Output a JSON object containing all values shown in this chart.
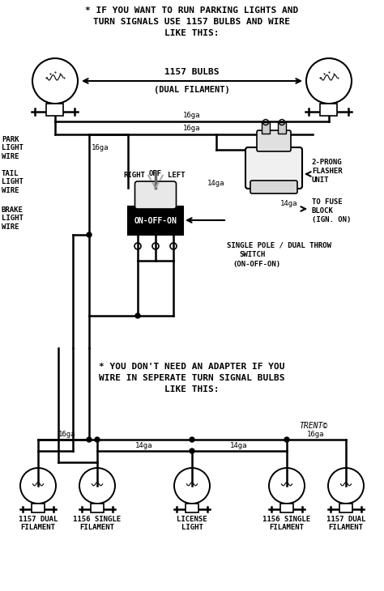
{
  "bg_color": "#ffffff",
  "line_color": "#000000",
  "top_text_line1": "* IF YOU WANT TO RUN PARKING LIGHTS AND",
  "top_text_line2": "TURN SIGNALS USE 1157 BULBS AND WIRE",
  "top_text_line3": "LIKE THIS:",
  "bulb_label1": "1157 BULBS",
  "bulb_label2": "(DUAL FILAMENT)",
  "left_label1": "PARK\nLIGHT\nWIRE",
  "left_label2": "TAIL\nLIGHT\nWIRE",
  "left_label3": "BRAKE\nLIGHT\nWIRE",
  "lbl_16ga_a": "16ga",
  "lbl_16ga_b": "16ga",
  "lbl_16ga_c": "16ga",
  "lbl_16ga_d": "16ga",
  "lbl_14ga_a": "14ga",
  "lbl_14ga_b": "14ga",
  "lbl_14ga_c": "14ga",
  "lbl_14ga_d": "14ga",
  "switch_text": "ON-OFF-ON",
  "right_lbl": "RIGHT",
  "off_lbl": "OFF",
  "left_lbl": "LEFT",
  "flasher_lbl1": "2-PRONG",
  "flasher_lbl2": "FLASHER",
  "flasher_lbl3": "UNIT",
  "fuse_lbl1": "TO FUSE",
  "fuse_lbl2": "BLOCK",
  "fuse_lbl3": "(IGN. ON)",
  "spdt_lbl1": "SINGLE POLE / DUAL THROW",
  "spdt_lbl2": "SWITCH",
  "spdt_lbl3": "(ON-OFF-ON)",
  "middle_line1": "* YOU DON'T NEED AN ADAPTER IF YOU",
  "middle_line2": "WIRE IN SEPERATE TURN SIGNAL BULBS",
  "middle_line3": "LIKE THIS:",
  "copyright": "TRENT©",
  "bottom_lbl0": "1157 DUAL\nFILAMENT",
  "bottom_lbl1": "1156 SINGLE\nFILAMENT",
  "bottom_lbl2": "LICENSE\nLIGHT",
  "bottom_lbl3": "1156 SINGLE\nFILAMENT",
  "bottom_lbl4": "1157 DUAL\nFILAMENT"
}
